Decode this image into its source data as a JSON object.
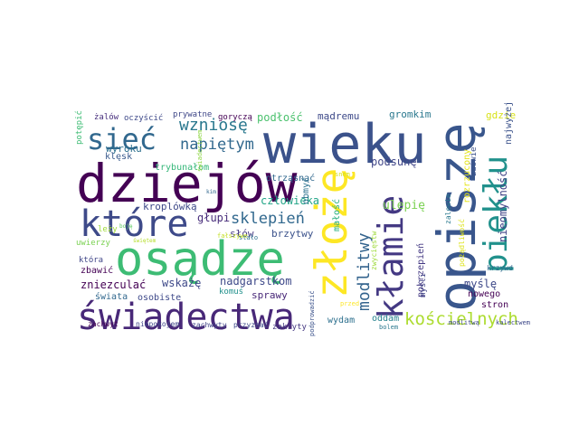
{
  "words": [
    {
      "text": "wieku",
      "color": "#3b528b"
    },
    {
      "text": "opiszę",
      "color": "#39568c"
    },
    {
      "text": "dziejów",
      "color": "#440154"
    },
    {
      "text": "osądzę",
      "color": "#3dbc74"
    },
    {
      "text": "złożę",
      "color": "#fde725"
    },
    {
      "text": "świadectwa",
      "color": "#482878"
    },
    {
      "text": "które",
      "color": "#3e4a89"
    },
    {
      "text": "kłamie",
      "color": "#443983"
    },
    {
      "text": "piekłu",
      "color": "#21918c"
    },
    {
      "text": "sieć",
      "color": "#31688e"
    },
    {
      "text": "modlitwy",
      "color": "#33638d"
    },
    {
      "text": "kościelnych",
      "color": "#addc30"
    },
    {
      "text": "wzniosę",
      "color": "#2a788e"
    },
    {
      "text": "napiętym",
      "color": "#31688e"
    },
    {
      "text": "sklepień",
      "color": "#31688e"
    },
    {
      "text": "podłość",
      "color": "#4ac16d"
    },
    {
      "text": "mądremu",
      "color": "#3e4a89"
    },
    {
      "text": "gromkim",
      "color": "#2a788e"
    },
    {
      "text": "gdzie",
      "color": "#d8e219"
    },
    {
      "text": "najwyżej",
      "color": "#3b528b"
    },
    {
      "text": "rozrzucony",
      "color": "#e5e419"
    },
    {
      "text": "nieomylność",
      "color": "#414487"
    },
    {
      "text": "podsunę",
      "color": "#404688"
    },
    {
      "text": "zaświe",
      "color": "#3b528b"
    },
    {
      "text": "ulepię",
      "color": "#7ad151"
    },
    {
      "text": "człowieka",
      "color": "#20a486"
    },
    {
      "text": "kroplówką",
      "color": "#3e4989"
    },
    {
      "text": "głupi",
      "color": "#472c7a"
    },
    {
      "text": "słów",
      "color": "#453882"
    },
    {
      "text": "brzytwy",
      "color": "#3b528b"
    },
    {
      "text": "wyroku",
      "color": "#2d708e"
    },
    {
      "text": "klęsk",
      "color": "#38598c"
    },
    {
      "text": "trybunałom",
      "color": "#35b779"
    },
    {
      "text": "żalów",
      "color": "#472f7d"
    },
    {
      "text": "oczyścić",
      "color": "#3e4989"
    },
    {
      "text": "prywatne",
      "color": "#3f4788"
    },
    {
      "text": "goryczą",
      "color": "#440154"
    },
    {
      "text": "potępić",
      "color": "#3dbc74"
    },
    {
      "text": "otrząsnąć",
      "color": "#31688e"
    },
    {
      "text": "obmyć",
      "color": "#2c728e"
    },
    {
      "text": "małość",
      "color": "#29af7f"
    },
    {
      "text": "nadgarstkom",
      "color": "#3e4989"
    },
    {
      "text": "zniezculać",
      "color": "#440154"
    },
    {
      "text": "wskażę",
      "color": "#3e4989"
    },
    {
      "text": "świata",
      "color": "#31688e"
    },
    {
      "text": "osobiste",
      "color": "#3e4989"
    },
    {
      "text": "sprawy",
      "color": "#482878"
    },
    {
      "text": "zachwyt",
      "color": "#440154"
    },
    {
      "text": "niepokojem",
      "color": "#404688"
    },
    {
      "text": "zachwyty",
      "color": "#404688"
    },
    {
      "text": "przyznać",
      "color": "#3e4989"
    },
    {
      "text": "zakryty",
      "color": "#453882"
    },
    {
      "text": "wydam",
      "color": "#2d708e"
    },
    {
      "text": "oddam",
      "color": "#26828e"
    },
    {
      "text": "pokrzepień",
      "color": "#443983"
    },
    {
      "text": "myśli",
      "color": "#414487"
    },
    {
      "text": "myślę",
      "color": "#3e4989"
    },
    {
      "text": "nowego",
      "color": "#440154"
    },
    {
      "text": "stron",
      "color": "#440154"
    },
    {
      "text": "krzywd",
      "color": "#31688e"
    },
    {
      "text": "która",
      "color": "#404688"
    },
    {
      "text": "zbawić",
      "color": "#440154"
    },
    {
      "text": "uwierzy",
      "color": "#7ad151"
    },
    {
      "text": "leży",
      "color": "#a0da39"
    },
    {
      "text": "boję",
      "color": "#5ec962"
    },
    {
      "text": "kim",
      "color": "#31688e"
    },
    {
      "text": "świadectwem",
      "color": "#8fd744"
    },
    {
      "text": "świętem",
      "color": "#b5de2b"
    },
    {
      "text": "stało",
      "color": "#2d708e"
    },
    {
      "text": "komuś",
      "color": "#21918c"
    },
    {
      "text": "fałszywe",
      "color": "#c2df23"
    },
    {
      "text": "zwycięstw",
      "color": "#9fda3a"
    },
    {
      "text": "pożądliwość",
      "color": "#dde318"
    },
    {
      "text": "zalewie",
      "color": "#2a788e"
    },
    {
      "text": "podprowadzić",
      "color": "#3b528b"
    },
    {
      "text": "przed",
      "color": "#fde725"
    },
    {
      "text": "bolem",
      "color": "#2a788e"
    },
    {
      "text": "modlitwą",
      "color": "#3e4989"
    },
    {
      "text": "kalectwem",
      "color": "#3e4989"
    },
    {
      "text": "snem",
      "color": "#d8e219"
    }
  ]
}
